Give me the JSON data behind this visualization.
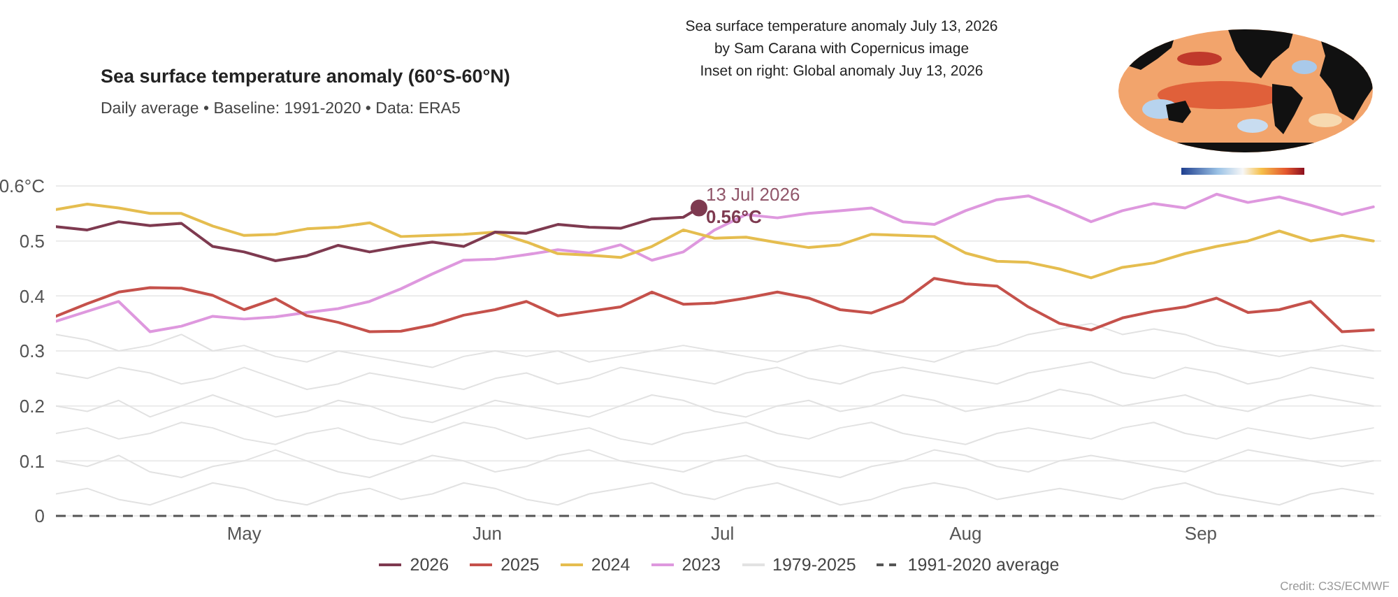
{
  "chart_data": {
    "type": "line",
    "title": "Sea surface temperature anomaly (60°S-60°N)",
    "subtitle": "Daily average • Baseline: 1991-2020 • Data: ERA5",
    "annotations": [
      "Sea surface temperature anomaly July 13, 2026",
      "by Sam Carana with Copernicus image",
      "Inset on right: Global anomaly Juy 13, 2026",
      {
        "text": "13 Jul 2026",
        "x": "--07-13",
        "y": 0.56
      },
      {
        "text": "0.56°C",
        "x": "--07-13",
        "y": 0.56
      },
      "Credit: C3S/ECMWF"
    ],
    "x": [
      "--04-22",
      "--04-26",
      "--04-30",
      "--05-04",
      "--05-08",
      "--05-12",
      "--05-16",
      "--05-20",
      "--05-24",
      "--05-28",
      "--06-01",
      "--06-05",
      "--06-09",
      "--06-13",
      "--06-17",
      "--06-21",
      "--06-25",
      "--06-29",
      "--07-03",
      "--07-07",
      "--07-11",
      "--07-15",
      "--07-19",
      "--07-23",
      "--07-27",
      "--07-31",
      "--08-04",
      "--08-08",
      "--08-12",
      "--08-16",
      "--08-20",
      "--08-24",
      "--08-28",
      "--09-01",
      "--09-05",
      "--09-09",
      "--09-13",
      "--09-17",
      "--09-21",
      "--09-25",
      "--09-29",
      "--10-03",
      "--10-07"
    ],
    "xlim": [
      "--04-22",
      "--10-08"
    ],
    "xticks": [
      {
        "value": "--05-16",
        "label": "May"
      },
      {
        "value": "--06-16",
        "label": "Jun"
      },
      {
        "value": "--07-16",
        "label": "Jul"
      },
      {
        "value": "--08-16",
        "label": "Aug"
      },
      {
        "value": "--09-15",
        "label": "Sep"
      }
    ],
    "ylim": [
      0,
      0.6
    ],
    "yticks": [
      0,
      0.1,
      0.2,
      0.3,
      0.4,
      0.5,
      {
        "value": 0.6,
        "label": "0.6°C"
      }
    ],
    "grid": "y",
    "legend": "bottom",
    "ref_lines": [
      {
        "axis": "y",
        "value": 0,
        "label": "1991-2020 average",
        "color": "#555555",
        "line_style": "dashed"
      }
    ],
    "series": [
      {
        "name": "2026",
        "color": "#7e3a50",
        "x": [
          "--04-22",
          "--04-26",
          "--04-30",
          "--05-04",
          "--05-08",
          "--05-12",
          "--05-16",
          "--05-20",
          "--05-24",
          "--05-28",
          "--06-01",
          "--06-05",
          "--06-09",
          "--06-13",
          "--06-17",
          "--06-21",
          "--06-25",
          "--06-29",
          "--07-03",
          "--07-07",
          "--07-11",
          "--07-13"
        ],
        "values": [
          0.526,
          0.52,
          0.535,
          0.528,
          0.532,
          0.49,
          0.48,
          0.464,
          0.473,
          0.492,
          0.48,
          0.49,
          0.498,
          0.49,
          0.516,
          0.514,
          0.53,
          0.525,
          0.523,
          0.54,
          0.543,
          0.56
        ]
      },
      {
        "name": "2025",
        "color": "#c5514b",
        "values": [
          0.363,
          0.386,
          0.407,
          0.415,
          0.414,
          0.401,
          0.375,
          0.395,
          0.364,
          0.352,
          0.335,
          0.336,
          0.347,
          0.365,
          0.375,
          0.39,
          0.364,
          0.372,
          0.38,
          0.407,
          0.385,
          0.387,
          0.396,
          0.407,
          0.396,
          0.375,
          0.369,
          0.39,
          0.432,
          0.422,
          0.418,
          0.38,
          0.35,
          0.338,
          0.36,
          0.372,
          0.38,
          0.396,
          0.37,
          0.375,
          0.39,
          0.335,
          0.338
        ]
      },
      {
        "name": "2024",
        "color": "#e5bd4f",
        "values": [
          0.557,
          0.567,
          0.56,
          0.55,
          0.55,
          0.527,
          0.51,
          0.512,
          0.522,
          0.525,
          0.533,
          0.508,
          0.51,
          0.512,
          0.516,
          0.498,
          0.477,
          0.474,
          0.47,
          0.49,
          0.52,
          0.505,
          0.507,
          0.497,
          0.488,
          0.493,
          0.512,
          0.51,
          0.508,
          0.478,
          0.463,
          0.461,
          0.449,
          0.433,
          0.452,
          0.46,
          0.477,
          0.49,
          0.5,
          0.518,
          0.5,
          0.51,
          0.5
        ]
      },
      {
        "name": "2023",
        "color": "#de98de",
        "values": [
          0.354,
          0.372,
          0.39,
          0.335,
          0.345,
          0.363,
          0.358,
          0.362,
          0.37,
          0.377,
          0.39,
          0.413,
          0.44,
          0.465,
          0.467,
          0.475,
          0.484,
          0.478,
          0.493,
          0.465,
          0.48,
          0.52,
          0.548,
          0.542,
          0.55,
          0.555,
          0.56,
          0.535,
          0.53,
          0.555,
          0.575,
          0.582,
          0.56,
          0.535,
          0.555,
          0.568,
          0.56,
          0.585,
          0.57,
          0.58,
          0.565,
          0.548,
          0.562
        ]
      },
      {
        "name": "1979-2025",
        "color": "#e2e2e2",
        "values": [
          0.33,
          0.32,
          0.3,
          0.31,
          0.33,
          0.3,
          0.31,
          0.29,
          0.28,
          0.3,
          0.29,
          0.28,
          0.27,
          0.29,
          0.3,
          0.29,
          0.3,
          0.28,
          0.29,
          0.3,
          0.31,
          0.3,
          0.29,
          0.28,
          0.3,
          0.31,
          0.3,
          0.29,
          0.28,
          0.3,
          0.31,
          0.33,
          0.34,
          0.35,
          0.33,
          0.34,
          0.33,
          0.31,
          0.3,
          0.29,
          0.3,
          0.31,
          0.3
        ]
      },
      {
        "color": "#e2e2e2",
        "values": [
          0.26,
          0.25,
          0.27,
          0.26,
          0.24,
          0.25,
          0.27,
          0.25,
          0.23,
          0.24,
          0.26,
          0.25,
          0.24,
          0.23,
          0.25,
          0.26,
          0.24,
          0.25,
          0.27,
          0.26,
          0.25,
          0.24,
          0.26,
          0.27,
          0.25,
          0.24,
          0.26,
          0.27,
          0.26,
          0.25,
          0.24,
          0.26,
          0.27,
          0.28,
          0.26,
          0.25,
          0.27,
          0.26,
          0.24,
          0.25,
          0.27,
          0.26,
          0.25
        ]
      },
      {
        "color": "#e2e2e2",
        "values": [
          0.2,
          0.19,
          0.21,
          0.18,
          0.2,
          0.22,
          0.2,
          0.18,
          0.19,
          0.21,
          0.2,
          0.18,
          0.17,
          0.19,
          0.21,
          0.2,
          0.19,
          0.18,
          0.2,
          0.22,
          0.21,
          0.19,
          0.18,
          0.2,
          0.21,
          0.19,
          0.2,
          0.22,
          0.21,
          0.19,
          0.2,
          0.21,
          0.23,
          0.22,
          0.2,
          0.21,
          0.22,
          0.2,
          0.19,
          0.21,
          0.22,
          0.21,
          0.2
        ]
      },
      {
        "color": "#e2e2e2",
        "values": [
          0.15,
          0.16,
          0.14,
          0.15,
          0.17,
          0.16,
          0.14,
          0.13,
          0.15,
          0.16,
          0.14,
          0.13,
          0.15,
          0.17,
          0.16,
          0.14,
          0.15,
          0.16,
          0.14,
          0.13,
          0.15,
          0.16,
          0.17,
          0.15,
          0.14,
          0.16,
          0.17,
          0.15,
          0.14,
          0.13,
          0.15,
          0.16,
          0.15,
          0.14,
          0.16,
          0.17,
          0.15,
          0.14,
          0.16,
          0.15,
          0.14,
          0.15,
          0.16
        ]
      },
      {
        "color": "#e2e2e2",
        "values": [
          0.1,
          0.09,
          0.11,
          0.08,
          0.07,
          0.09,
          0.1,
          0.12,
          0.1,
          0.08,
          0.07,
          0.09,
          0.11,
          0.1,
          0.08,
          0.09,
          0.11,
          0.12,
          0.1,
          0.09,
          0.08,
          0.1,
          0.11,
          0.09,
          0.08,
          0.07,
          0.09,
          0.1,
          0.12,
          0.11,
          0.09,
          0.08,
          0.1,
          0.11,
          0.1,
          0.09,
          0.08,
          0.1,
          0.12,
          0.11,
          0.1,
          0.09,
          0.1
        ]
      },
      {
        "color": "#e2e2e2",
        "values": [
          0.04,
          0.05,
          0.03,
          0.02,
          0.04,
          0.06,
          0.05,
          0.03,
          0.02,
          0.04,
          0.05,
          0.03,
          0.04,
          0.06,
          0.05,
          0.03,
          0.02,
          0.04,
          0.05,
          0.06,
          0.04,
          0.03,
          0.05,
          0.06,
          0.04,
          0.02,
          0.03,
          0.05,
          0.06,
          0.05,
          0.03,
          0.04,
          0.05,
          0.04,
          0.03,
          0.05,
          0.06,
          0.04,
          0.03,
          0.02,
          0.04,
          0.05,
          0.04
        ]
      }
    ]
  }
}
